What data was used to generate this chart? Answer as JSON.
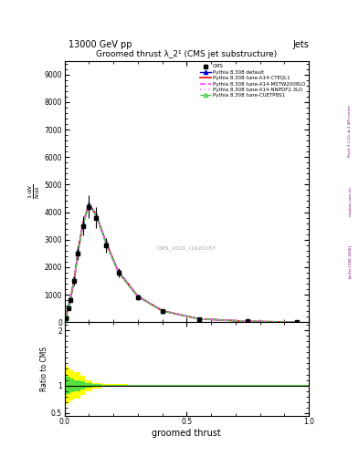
{
  "title": "Groomed thrust λ_2¹ (CMS jet substructure)",
  "header_left": "13000 GeV pp",
  "header_right": "Jets",
  "xlabel": "groomed thrust",
  "ylabel_main": "$\\frac{1}{N}\\frac{\\mathrm{d}N}{\\mathrm{d}\\lambda}$",
  "ylabel_ratio": "Ratio to CMS",
  "watermark": "CMS_2021_I1920187",
  "right_label_top": "Rivet 3.1.10, ≥ 2.4M events",
  "right_label_bottom": "[arXiv:1306.3436]",
  "right_label_site": "mcplots.cern.ch",
  "xlim": [
    0.0,
    1.0
  ],
  "ylim_main": [
    0,
    9500
  ],
  "ylim_ratio": [
    0.45,
    2.15
  ],
  "bg_color": "#ffffff",
  "legend_entries": [
    {
      "label": "CMS",
      "color": "black",
      "marker": "s",
      "linestyle": "none"
    },
    {
      "label": "Pythia 8.308 default",
      "color": "#0000cc",
      "marker": "^",
      "linestyle": "-"
    },
    {
      "label": "Pythia 8.308 tune-A14-CTEQL1",
      "color": "#ff0000",
      "marker": "none",
      "linestyle": "-"
    },
    {
      "label": "Pythia 8.308 tune-A14-MSTW2008LO",
      "color": "#ff44ff",
      "marker": "none",
      "linestyle": "--"
    },
    {
      "label": "Pythia 8.308 tune-A14-NNPDF2.3LO",
      "color": "#ff88ff",
      "marker": "none",
      "linestyle": ":"
    },
    {
      "label": "Pythia 8.308 tune-CUETP8S1",
      "color": "#44cc44",
      "marker": "^",
      "linestyle": "--"
    }
  ],
  "cms_x": [
    0.005,
    0.015,
    0.025,
    0.04,
    0.055,
    0.075,
    0.1,
    0.13,
    0.17,
    0.22,
    0.3,
    0.4,
    0.55,
    0.75,
    0.95
  ],
  "cms_y": [
    150,
    500,
    800,
    1500,
    2500,
    3500,
    4200,
    3800,
    2800,
    1800,
    900,
    400,
    120,
    30,
    5
  ],
  "cms_yerr": [
    20,
    60,
    90,
    160,
    250,
    340,
    400,
    370,
    270,
    175,
    88,
    40,
    12,
    3,
    0.6
  ],
  "pythia_x": [
    0.0025,
    0.0075,
    0.015,
    0.025,
    0.04,
    0.055,
    0.075,
    0.1,
    0.13,
    0.17,
    0.22,
    0.3,
    0.4,
    0.55,
    0.75,
    0.95
  ],
  "pythia_default_y": [
    50,
    200,
    600,
    900,
    1600,
    2600,
    3600,
    4300,
    3900,
    2900,
    1850,
    950,
    420,
    125,
    32,
    6
  ],
  "pythia_cteql1_y": [
    50,
    200,
    590,
    890,
    1580,
    2580,
    3580,
    4280,
    3880,
    2880,
    1830,
    940,
    415,
    122,
    31,
    5.8
  ],
  "pythia_mstw_y": [
    50,
    200,
    580,
    880,
    1560,
    2560,
    3560,
    4260,
    3860,
    2860,
    1810,
    930,
    410,
    120,
    30,
    5.6
  ],
  "pythia_nnpdf_y": [
    50,
    200,
    585,
    885,
    1570,
    2570,
    3570,
    4270,
    3870,
    2870,
    1820,
    935,
    412,
    121,
    30.5,
    5.7
  ],
  "pythia_cuetp8s1_y": [
    50,
    200,
    575,
    875,
    1550,
    2550,
    3550,
    4250,
    3850,
    2850,
    1800,
    925,
    408,
    119,
    30,
    5.5
  ],
  "ratio_x_edges": [
    0.0,
    0.01,
    0.025,
    0.04,
    0.065,
    0.085,
    0.115,
    0.15,
    0.2,
    0.26,
    0.36,
    0.47,
    0.63,
    0.83,
    1.0
  ],
  "yellow_band_low": [
    0.65,
    0.68,
    0.72,
    0.76,
    0.82,
    0.9,
    0.95,
    0.97,
    0.98,
    0.99,
    0.995,
    0.995,
    0.998,
    0.998
  ],
  "yellow_band_high": [
    1.35,
    1.32,
    1.28,
    1.24,
    1.18,
    1.1,
    1.05,
    1.03,
    1.02,
    1.01,
    1.005,
    1.005,
    1.002,
    1.002
  ],
  "green_band_low": [
    0.82,
    0.84,
    0.87,
    0.9,
    0.93,
    0.96,
    0.975,
    0.985,
    0.99,
    0.995,
    0.997,
    0.997,
    0.999,
    0.999
  ],
  "green_band_high": [
    1.18,
    1.16,
    1.13,
    1.1,
    1.07,
    1.04,
    1.025,
    1.015,
    1.01,
    1.005,
    1.003,
    1.003,
    1.001,
    1.001
  ]
}
